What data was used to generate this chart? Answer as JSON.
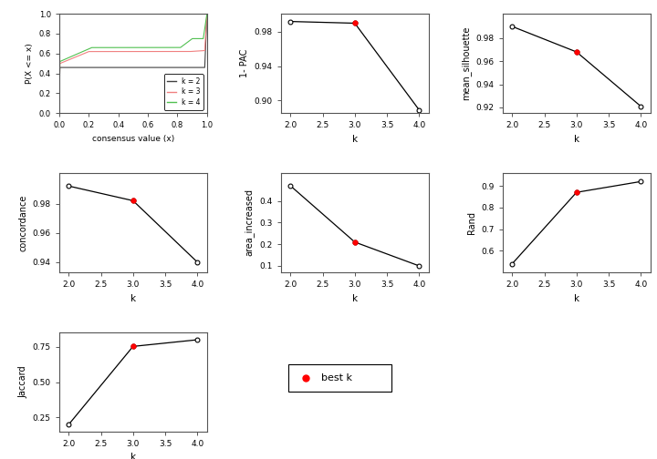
{
  "k_vals": [
    2,
    3,
    4
  ],
  "pac": [
    0.992,
    0.99,
    0.889
  ],
  "mean_silhouette": [
    0.99,
    0.968,
    0.921
  ],
  "concordance": [
    0.992,
    0.982,
    0.94
  ],
  "area_increased": [
    0.47,
    0.21,
    0.1
  ],
  "rand": [
    0.54,
    0.87,
    0.92
  ],
  "jaccard": [
    0.2,
    0.753,
    0.8
  ],
  "best_k": 3,
  "cdf_colors": [
    "#404040",
    "#F08080",
    "#50C050"
  ],
  "cdf_labels": [
    "k = 2",
    "k = 3",
    "k = 4"
  ],
  "background_color": "#FFFFFF"
}
